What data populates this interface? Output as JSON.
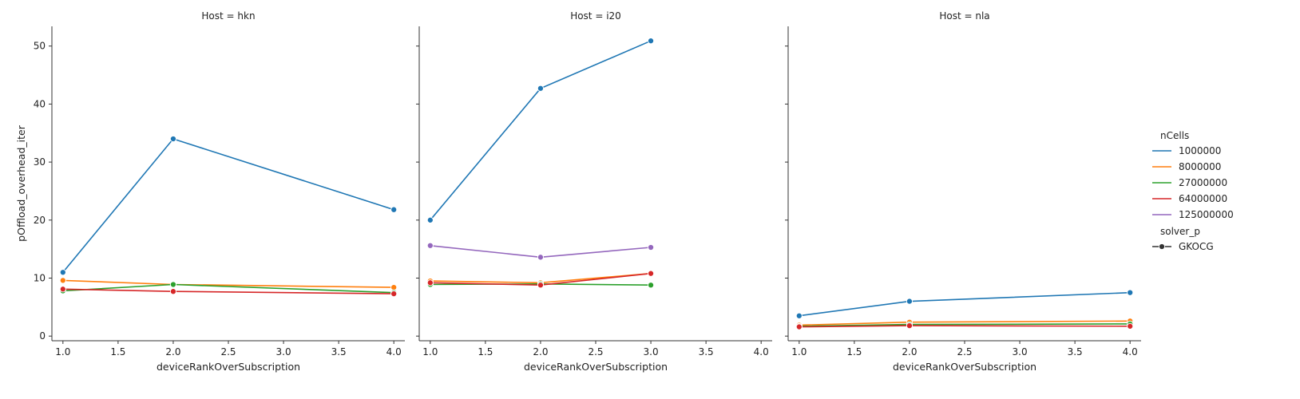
{
  "chart_data": {
    "type": "line",
    "ylabel": "pOffload_overhead_iter",
    "xlabel": "deviceRankOverSubscription",
    "xlim": [
      0.9,
      4.1
    ],
    "ylim": [
      -0.8,
      53.4
    ],
    "xticks": [
      1.0,
      1.5,
      2.0,
      2.5,
      3.0,
      3.5,
      4.0
    ],
    "xtick_labels": [
      "1.0",
      "1.5",
      "2.0",
      "2.5",
      "3.0",
      "3.5",
      "4.0"
    ],
    "yticks": [
      0,
      10,
      20,
      30,
      40,
      50
    ],
    "ytick_labels": [
      "0",
      "10",
      "20",
      "30",
      "40",
      "50"
    ],
    "legend": {
      "placement": "right",
      "hue_title": "nCells",
      "style_title": "solver_p",
      "style_entries": [
        "GKOCG"
      ]
    },
    "series_styles": [
      {
        "name": "1000000",
        "color": "#1f77b4"
      },
      {
        "name": "8000000",
        "color": "#ff7f0e"
      },
      {
        "name": "27000000",
        "color": "#2ca02c"
      },
      {
        "name": "64000000",
        "color": "#d62728"
      },
      {
        "name": "125000000",
        "color": "#9467bd"
      }
    ],
    "facets": [
      {
        "title": "Host = hkn",
        "series": [
          {
            "name": "1000000",
            "x": [
              1,
              2,
              4
            ],
            "y": [
              11.0,
              34.0,
              21.8
            ]
          },
          {
            "name": "8000000",
            "x": [
              1,
              2,
              4
            ],
            "y": [
              9.6,
              8.9,
              8.4
            ]
          },
          {
            "name": "27000000",
            "x": [
              1,
              2,
              4
            ],
            "y": [
              7.8,
              8.9,
              7.5
            ]
          },
          {
            "name": "64000000",
            "x": [
              1,
              2,
              4
            ],
            "y": [
              8.1,
              7.7,
              7.3
            ]
          }
        ]
      },
      {
        "title": "Host = i20",
        "series": [
          {
            "name": "1000000",
            "x": [
              1,
              2,
              3
            ],
            "y": [
              20.0,
              42.7,
              50.9
            ]
          },
          {
            "name": "8000000",
            "x": [
              1,
              2,
              3
            ],
            "y": [
              9.5,
              9.2,
              10.8
            ]
          },
          {
            "name": "27000000",
            "x": [
              1,
              2,
              3
            ],
            "y": [
              8.9,
              9.0,
              8.8
            ]
          },
          {
            "name": "64000000",
            "x": [
              1,
              2,
              3
            ],
            "y": [
              9.2,
              8.8,
              10.8
            ]
          },
          {
            "name": "125000000",
            "x": [
              1,
              2,
              3
            ],
            "y": [
              15.6,
              13.6,
              15.3
            ]
          }
        ]
      },
      {
        "title": "Host = nla",
        "series": [
          {
            "name": "1000000",
            "x": [
              1,
              2,
              4
            ],
            "y": [
              3.5,
              6.0,
              7.5
            ]
          },
          {
            "name": "8000000",
            "x": [
              1,
              2,
              4
            ],
            "y": [
              1.9,
              2.4,
              2.6
            ]
          },
          {
            "name": "27000000",
            "x": [
              1,
              2,
              4
            ],
            "y": [
              1.7,
              2.0,
              2.1
            ]
          },
          {
            "name": "64000000",
            "x": [
              1,
              2,
              4
            ],
            "y": [
              1.6,
              1.8,
              1.7
            ]
          }
        ]
      }
    ]
  }
}
